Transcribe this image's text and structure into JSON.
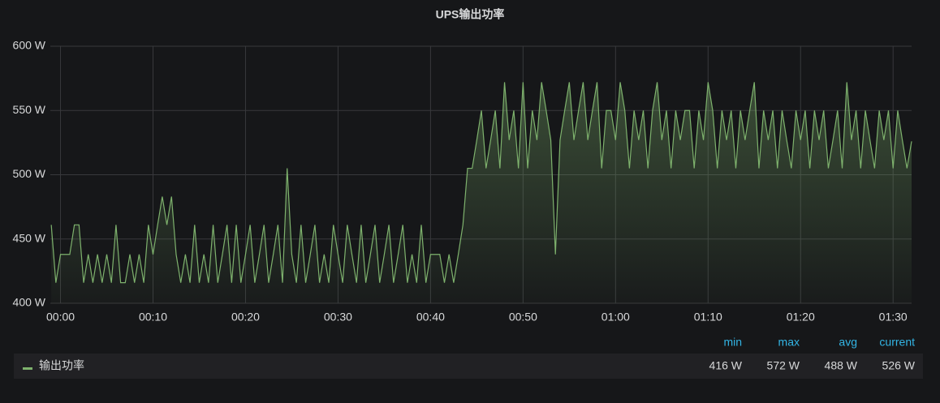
{
  "chart_data": {
    "type": "line",
    "title": "UPS输出功率",
    "x": [
      -1,
      -0.5,
      0,
      0.5,
      1,
      1.5,
      2,
      2.5,
      3,
      3.5,
      4,
      4.5,
      5,
      5.5,
      6,
      6.5,
      7,
      7.5,
      8,
      8.5,
      9,
      9.5,
      10,
      10.5,
      11,
      11.5,
      12,
      12.5,
      13,
      13.5,
      14,
      14.5,
      15,
      15.5,
      16,
      16.5,
      17,
      17.5,
      18,
      18.5,
      19,
      19.5,
      20,
      20.5,
      21,
      21.5,
      22,
      22.5,
      23,
      23.5,
      24,
      24.5,
      25,
      25.5,
      26,
      26.5,
      27,
      27.5,
      28,
      28.5,
      29,
      29.5,
      30,
      30.5,
      31,
      31.5,
      32,
      32.5,
      33,
      33.5,
      34,
      34.5,
      35,
      35.5,
      36,
      36.5,
      37,
      37.5,
      38,
      38.5,
      39,
      39.5,
      40,
      40.5,
      41,
      41.5,
      42,
      42.5,
      43,
      43.5,
      44,
      44.5,
      45,
      45.5,
      46,
      46.5,
      47,
      47.5,
      48,
      48.5,
      49,
      49.5,
      50,
      50.5,
      51,
      51.5,
      52,
      52.5,
      53,
      53.5,
      54,
      54.5,
      55,
      55.5,
      56,
      56.5,
      57,
      57.5,
      58,
      58.5,
      59,
      59.5,
      60,
      60.5,
      61,
      61.5,
      62,
      62.5,
      63,
      63.5,
      64,
      64.5,
      65,
      65.5,
      66,
      66.5,
      67,
      67.5,
      68,
      68.5,
      69,
      69.5,
      70,
      70.5,
      71,
      71.5,
      72,
      72.5,
      73,
      73.5,
      74,
      74.5,
      75,
      75.5,
      76,
      76.5,
      77,
      77.5,
      78,
      78.5,
      79,
      79.5,
      80,
      80.5,
      81,
      81.5,
      82,
      82.5,
      83,
      83.5,
      84,
      84.5,
      85,
      85.5,
      86,
      86.5,
      87,
      87.5,
      88,
      88.5,
      89,
      89.5,
      90,
      90.5,
      91,
      91.5,
      92
    ],
    "series": [
      {
        "name": "输出功率",
        "color": "#7eb26d",
        "values": [
          461,
          416,
          438,
          438,
          438,
          461,
          461,
          416,
          438,
          416,
          438,
          416,
          438,
          416,
          461,
          416,
          416,
          438,
          416,
          438,
          416,
          461,
          438,
          461,
          483,
          461,
          483,
          438,
          416,
          438,
          416,
          461,
          416,
          438,
          416,
          461,
          416,
          438,
          461,
          416,
          461,
          416,
          438,
          461,
          416,
          438,
          461,
          416,
          438,
          461,
          416,
          505,
          438,
          416,
          461,
          416,
          438,
          461,
          416,
          438,
          416,
          461,
          438,
          416,
          461,
          438,
          416,
          461,
          416,
          438,
          461,
          416,
          438,
          461,
          416,
          438,
          461,
          416,
          438,
          416,
          461,
          416,
          438,
          438,
          438,
          416,
          438,
          416,
          438,
          461,
          505,
          505,
          527,
          550,
          505,
          527,
          550,
          505,
          572,
          527,
          550,
          505,
          572,
          505,
          550,
          527,
          572,
          550,
          527,
          438,
          527,
          550,
          572,
          527,
          550,
          572,
          527,
          550,
          572,
          505,
          550,
          550,
          527,
          572,
          550,
          505,
          550,
          527,
          550,
          505,
          550,
          572,
          527,
          550,
          505,
          550,
          527,
          550,
          550,
          505,
          550,
          527,
          572,
          550,
          505,
          550,
          527,
          550,
          505,
          550,
          527,
          550,
          572,
          505,
          550,
          527,
          550,
          505,
          550,
          527,
          505,
          550,
          527,
          550,
          505,
          550,
          527,
          550,
          505,
          527,
          550,
          505,
          572,
          527,
          550,
          505,
          550,
          527,
          505,
          550,
          527,
          550,
          505,
          550,
          527,
          505,
          526
        ]
      }
    ],
    "xlim": [
      -1.1,
      92
    ],
    "xticks": [
      {
        "value": 0,
        "label": "00:00"
      },
      {
        "value": 10,
        "label": "00:10"
      },
      {
        "value": 20,
        "label": "00:20"
      },
      {
        "value": 30,
        "label": "00:30"
      },
      {
        "value": 40,
        "label": "00:40"
      },
      {
        "value": 50,
        "label": "00:50"
      },
      {
        "value": 60,
        "label": "01:00"
      },
      {
        "value": 70,
        "label": "01:10"
      },
      {
        "value": 80,
        "label": "01:20"
      },
      {
        "value": 90,
        "label": "01:30"
      }
    ],
    "ylim": [
      400,
      600
    ],
    "yticks": [
      {
        "value": 400,
        "label": "400 W"
      },
      {
        "value": 450,
        "label": "450 W"
      },
      {
        "value": 500,
        "label": "500 W"
      },
      {
        "value": 550,
        "label": "550 W"
      },
      {
        "value": 600,
        "label": "600 W"
      }
    ],
    "grid": true,
    "legend": {
      "headers": [
        "min",
        "max",
        "avg",
        "current"
      ],
      "stats": [
        "416 W",
        "572 W",
        "488 W",
        "526 W"
      ]
    }
  }
}
